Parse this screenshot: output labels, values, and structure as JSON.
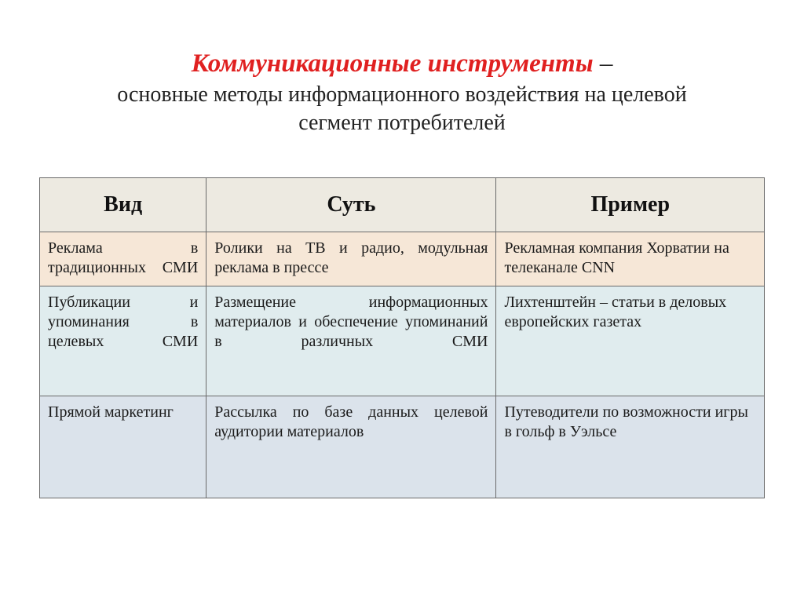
{
  "heading": {
    "title_accent": "Коммуникационные инструменты",
    "dash": " –",
    "subtitle_line1": "основные методы информационного воздействия на целевой",
    "subtitle_line2": "сегмент потребителей",
    "accent_color": "#e02020",
    "title_fontsize": 33,
    "subtitle_fontsize": 28
  },
  "table": {
    "columns": [
      {
        "label": "Вид",
        "width_pct": 23
      },
      {
        "label": "Суть",
        "width_pct": 40
      },
      {
        "label": "Пример",
        "width_pct": 37
      }
    ],
    "header_bg": "#edeae1",
    "header_fontsize": 28,
    "cell_fontsize": 20,
    "border_color": "#6a6a6a",
    "rows": [
      {
        "bg": "#f6e7d7",
        "cells": [
          "Реклама в традиционных СМИ",
          "Ролики на ТВ и радио, модульная реклама в прессе",
          "Рекламная компания Хорватии на телеканале CNN"
        ]
      },
      {
        "bg": "#e0ecee",
        "cells": [
          "Публикации и упоминания в целевых СМИ",
          "Размещение информационных материалов и обеспечение упоминаний в различных СМИ",
          "Лихтенштейн – статьи в деловых европейских газетах"
        ]
      },
      {
        "bg": "#dbe3eb",
        "cells": [
          "Прямой маркетинг",
          "Рассылка по базе данных целевой аудитории материалов",
          "Путеводители по возможности игры в гольф в Уэльсе"
        ]
      }
    ]
  }
}
